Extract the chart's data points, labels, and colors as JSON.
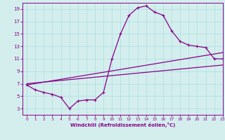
{
  "line1_x": [
    0,
    1,
    2,
    3,
    4,
    5,
    6,
    7,
    8,
    9,
    10,
    11,
    12,
    13,
    14,
    15,
    16,
    17,
    18,
    19,
    20,
    21,
    22,
    23
  ],
  "line1_y": [
    6.8,
    6.0,
    5.6,
    5.3,
    4.8,
    3.0,
    4.2,
    4.4,
    4.4,
    5.6,
    11.0,
    15.0,
    18.0,
    19.2,
    19.5,
    18.5,
    18.0,
    15.5,
    13.8,
    13.2,
    13.0,
    12.8,
    11.0,
    11.0
  ],
  "line2_x": [
    0,
    23
  ],
  "line2_y": [
    6.8,
    12.0
  ],
  "line3_x": [
    0,
    23
  ],
  "line3_y": [
    7.0,
    10.0
  ],
  "line_color": "#880088",
  "marker": "+",
  "bg_color": "#d4eeee",
  "grid_color": "#aadddd",
  "xlabel": "Windchill (Refroidissement éolien,°C)",
  "xlim": [
    -0.5,
    23
  ],
  "ylim": [
    2,
    20
  ],
  "xticks": [
    0,
    1,
    2,
    3,
    4,
    5,
    6,
    7,
    8,
    9,
    10,
    11,
    12,
    13,
    14,
    15,
    16,
    17,
    18,
    19,
    20,
    21,
    22,
    23
  ],
  "yticks": [
    3,
    5,
    7,
    9,
    11,
    13,
    15,
    17,
    19
  ],
  "spine_color": "#880088",
  "tick_color": "#880088",
  "label_color": "#880088"
}
